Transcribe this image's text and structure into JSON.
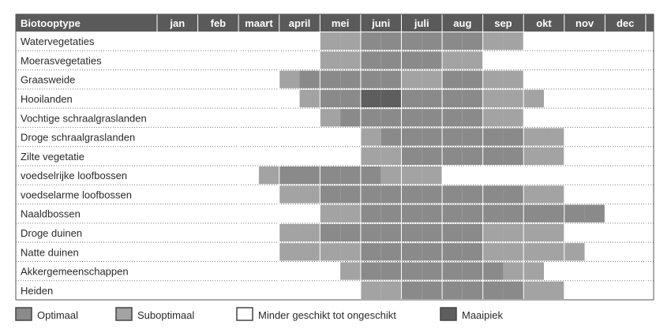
{
  "chart_data": {
    "type": "heatmap",
    "header_label": "Biotooptype",
    "months": [
      "jan",
      "feb",
      "maart",
      "april",
      "mei",
      "juni",
      "juli",
      "aug",
      "sep",
      "okt",
      "nov",
      "dec"
    ],
    "levels": {
      "optimaal": "#8a8a8a",
      "suboptimaal": "#a3a3a3",
      "minder": "#ffffff",
      "maaipiek": "#5e5e5e"
    },
    "legend": [
      {
        "key": "optimaal",
        "label": "Optimaal"
      },
      {
        "key": "suboptimaal",
        "label": "Suboptimaal"
      },
      {
        "key": "minder",
        "label": "Minder geschikt tot ongeschikt"
      },
      {
        "key": "maaipiek",
        "label": "Maaipiek"
      }
    ],
    "rows": [
      {
        "label": "Watervegetaties",
        "cells": [
          [
            4,
            0,
            "suboptimaal"
          ],
          [
            4,
            1,
            "suboptimaal"
          ],
          [
            5,
            0,
            "optimaal"
          ],
          [
            5,
            1,
            "optimaal"
          ],
          [
            6,
            0,
            "optimaal"
          ],
          [
            6,
            1,
            "optimaal"
          ],
          [
            7,
            0,
            "optimaal"
          ],
          [
            7,
            1,
            "optimaal"
          ],
          [
            8,
            0,
            "suboptimaal"
          ],
          [
            8,
            1,
            "suboptimaal"
          ]
        ]
      },
      {
        "label": "Moerasvegetaties",
        "cells": [
          [
            4,
            0,
            "suboptimaal"
          ],
          [
            4,
            1,
            "suboptimaal"
          ],
          [
            5,
            0,
            "optimaal"
          ],
          [
            5,
            1,
            "optimaal"
          ],
          [
            6,
            0,
            "optimaal"
          ],
          [
            6,
            1,
            "optimaal"
          ],
          [
            7,
            0,
            "suboptimaal"
          ],
          [
            7,
            1,
            "suboptimaal"
          ]
        ]
      },
      {
        "label": "Graasweide",
        "cells": [
          [
            3,
            0,
            "suboptimaal"
          ],
          [
            3,
            1,
            "optimaal"
          ],
          [
            4,
            0,
            "optimaal"
          ],
          [
            4,
            1,
            "optimaal"
          ],
          [
            5,
            0,
            "optimaal"
          ],
          [
            5,
            1,
            "optimaal"
          ],
          [
            6,
            0,
            "suboptimaal"
          ],
          [
            6,
            1,
            "suboptimaal"
          ],
          [
            7,
            0,
            "optimaal"
          ],
          [
            7,
            1,
            "optimaal"
          ],
          [
            8,
            0,
            "suboptimaal"
          ],
          [
            8,
            1,
            "suboptimaal"
          ]
        ]
      },
      {
        "label": "Hooilanden",
        "cells": [
          [
            3,
            1,
            "suboptimaal"
          ],
          [
            4,
            0,
            "optimaal"
          ],
          [
            4,
            1,
            "optimaal"
          ],
          [
            5,
            0,
            "maaipiek"
          ],
          [
            5,
            1,
            "maaipiek"
          ],
          [
            6,
            0,
            "optimaal"
          ],
          [
            6,
            1,
            "optimaal"
          ],
          [
            7,
            0,
            "optimaal"
          ],
          [
            7,
            1,
            "optimaal"
          ],
          [
            8,
            0,
            "suboptimaal"
          ],
          [
            8,
            1,
            "suboptimaal"
          ],
          [
            9,
            0,
            "suboptimaal"
          ]
        ]
      },
      {
        "label": "Vochtige schraalgraslanden",
        "cells": [
          [
            4,
            0,
            "suboptimaal"
          ],
          [
            4,
            1,
            "optimaal"
          ],
          [
            5,
            0,
            "optimaal"
          ],
          [
            5,
            1,
            "optimaal"
          ],
          [
            6,
            0,
            "optimaal"
          ],
          [
            6,
            1,
            "optimaal"
          ],
          [
            7,
            0,
            "optimaal"
          ],
          [
            7,
            1,
            "optimaal"
          ],
          [
            8,
            0,
            "suboptimaal"
          ],
          [
            8,
            1,
            "suboptimaal"
          ]
        ]
      },
      {
        "label": "Droge schraalgraslanden",
        "cells": [
          [
            5,
            0,
            "suboptimaal"
          ],
          [
            5,
            1,
            "optimaal"
          ],
          [
            6,
            0,
            "optimaal"
          ],
          [
            6,
            1,
            "optimaal"
          ],
          [
            7,
            0,
            "optimaal"
          ],
          [
            7,
            1,
            "optimaal"
          ],
          [
            8,
            0,
            "optimaal"
          ],
          [
            8,
            1,
            "optimaal"
          ],
          [
            9,
            0,
            "suboptimaal"
          ],
          [
            9,
            1,
            "suboptimaal"
          ]
        ]
      },
      {
        "label": "Zilte vegetatie",
        "cells": [
          [
            5,
            0,
            "suboptimaal"
          ],
          [
            5,
            1,
            "suboptimaal"
          ],
          [
            6,
            0,
            "optimaal"
          ],
          [
            6,
            1,
            "optimaal"
          ],
          [
            7,
            0,
            "optimaal"
          ],
          [
            7,
            1,
            "optimaal"
          ],
          [
            8,
            0,
            "optimaal"
          ],
          [
            8,
            1,
            "optimaal"
          ],
          [
            9,
            0,
            "suboptimaal"
          ],
          [
            9,
            1,
            "suboptimaal"
          ]
        ]
      },
      {
        "label": "voedselrijke loofbossen",
        "cells": [
          [
            2,
            1,
            "suboptimaal"
          ],
          [
            3,
            0,
            "optimaal"
          ],
          [
            3,
            1,
            "optimaal"
          ],
          [
            4,
            0,
            "optimaal"
          ],
          [
            4,
            1,
            "optimaal"
          ],
          [
            5,
            0,
            "optimaal"
          ],
          [
            5,
            1,
            "suboptimaal"
          ],
          [
            6,
            0,
            "suboptimaal"
          ],
          [
            6,
            1,
            "suboptimaal"
          ]
        ]
      },
      {
        "label": "voedselarme loofbossen",
        "cells": [
          [
            3,
            0,
            "suboptimaal"
          ],
          [
            3,
            1,
            "suboptimaal"
          ],
          [
            4,
            0,
            "optimaal"
          ],
          [
            4,
            1,
            "optimaal"
          ],
          [
            5,
            0,
            "optimaal"
          ],
          [
            5,
            1,
            "optimaal"
          ],
          [
            6,
            0,
            "optimaal"
          ],
          [
            6,
            1,
            "optimaal"
          ],
          [
            7,
            0,
            "optimaal"
          ],
          [
            7,
            1,
            "optimaal"
          ],
          [
            8,
            0,
            "optimaal"
          ],
          [
            8,
            1,
            "optimaal"
          ],
          [
            9,
            0,
            "suboptimaal"
          ],
          [
            9,
            1,
            "suboptimaal"
          ]
        ]
      },
      {
        "label": "Naaldbossen",
        "cells": [
          [
            4,
            0,
            "suboptimaal"
          ],
          [
            4,
            1,
            "suboptimaal"
          ],
          [
            5,
            0,
            "optimaal"
          ],
          [
            5,
            1,
            "optimaal"
          ],
          [
            6,
            0,
            "optimaal"
          ],
          [
            6,
            1,
            "optimaal"
          ],
          [
            7,
            0,
            "optimaal"
          ],
          [
            7,
            1,
            "optimaal"
          ],
          [
            8,
            0,
            "optimaal"
          ],
          [
            8,
            1,
            "optimaal"
          ],
          [
            9,
            0,
            "optimaal"
          ],
          [
            9,
            1,
            "optimaal"
          ],
          [
            10,
            0,
            "optimaal"
          ],
          [
            10,
            1,
            "optimaal"
          ]
        ]
      },
      {
        "label": "Droge duinen",
        "cells": [
          [
            3,
            0,
            "suboptimaal"
          ],
          [
            3,
            1,
            "suboptimaal"
          ],
          [
            4,
            0,
            "optimaal"
          ],
          [
            4,
            1,
            "optimaal"
          ],
          [
            5,
            0,
            "optimaal"
          ],
          [
            5,
            1,
            "optimaal"
          ],
          [
            6,
            0,
            "optimaal"
          ],
          [
            6,
            1,
            "optimaal"
          ],
          [
            7,
            0,
            "optimaal"
          ],
          [
            7,
            1,
            "optimaal"
          ],
          [
            8,
            0,
            "suboptimaal"
          ],
          [
            8,
            1,
            "suboptimaal"
          ],
          [
            9,
            0,
            "suboptimaal"
          ],
          [
            9,
            1,
            "suboptimaal"
          ]
        ]
      },
      {
        "label": "Natte duinen",
        "cells": [
          [
            3,
            0,
            "suboptimaal"
          ],
          [
            3,
            1,
            "suboptimaal"
          ],
          [
            4,
            0,
            "suboptimaal"
          ],
          [
            4,
            1,
            "suboptimaal"
          ],
          [
            5,
            0,
            "optimaal"
          ],
          [
            5,
            1,
            "optimaal"
          ],
          [
            6,
            0,
            "optimaal"
          ],
          [
            6,
            1,
            "optimaal"
          ],
          [
            7,
            0,
            "optimaal"
          ],
          [
            7,
            1,
            "optimaal"
          ],
          [
            8,
            0,
            "suboptimaal"
          ],
          [
            8,
            1,
            "suboptimaal"
          ],
          [
            9,
            0,
            "suboptimaal"
          ],
          [
            9,
            1,
            "suboptimaal"
          ],
          [
            10,
            0,
            "suboptimaal"
          ]
        ]
      },
      {
        "label": "Akkergemeenschappen",
        "cells": [
          [
            4,
            1,
            "suboptimaal"
          ],
          [
            5,
            0,
            "optimaal"
          ],
          [
            5,
            1,
            "optimaal"
          ],
          [
            6,
            0,
            "optimaal"
          ],
          [
            6,
            1,
            "optimaal"
          ],
          [
            7,
            0,
            "optimaal"
          ],
          [
            7,
            1,
            "optimaal"
          ],
          [
            8,
            0,
            "optimaal"
          ],
          [
            8,
            1,
            "suboptimaal"
          ],
          [
            9,
            0,
            "suboptimaal"
          ]
        ]
      },
      {
        "label": "Heiden",
        "cells": [
          [
            5,
            0,
            "suboptimaal"
          ],
          [
            5,
            1,
            "suboptimaal"
          ],
          [
            6,
            0,
            "optimaal"
          ],
          [
            6,
            1,
            "optimaal"
          ],
          [
            7,
            0,
            "optimaal"
          ],
          [
            7,
            1,
            "optimaal"
          ],
          [
            8,
            0,
            "optimaal"
          ],
          [
            8,
            1,
            "optimaal"
          ],
          [
            9,
            0,
            "suboptimaal"
          ],
          [
            9,
            1,
            "suboptimaal"
          ]
        ]
      }
    ]
  }
}
